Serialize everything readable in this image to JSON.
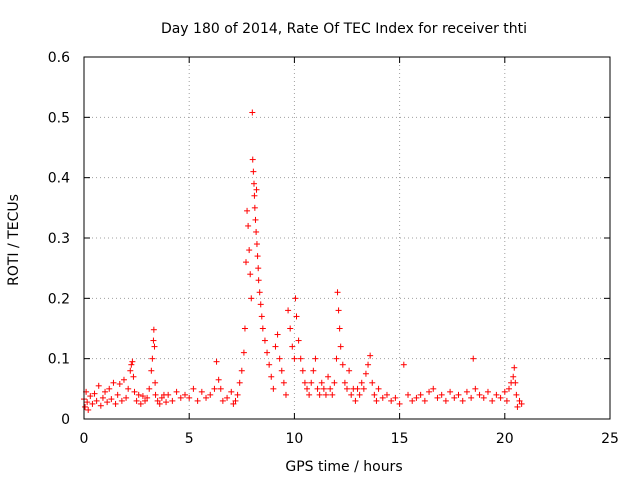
{
  "chart_data": {
    "type": "scatter",
    "title": "Day 180 of 2014, Rate Of TEC Index for receiver thti",
    "xlabel": "GPS time / hours",
    "ylabel": "ROTI / TECUs",
    "xlim": [
      0,
      25
    ],
    "ylim": [
      0,
      0.6
    ],
    "xticks": [
      0,
      5,
      10,
      15,
      20,
      25
    ],
    "xtick_labels": [
      "0",
      "5",
      "10",
      "15",
      "20",
      "25"
    ],
    "yticks": [
      0,
      0.1,
      0.2,
      0.3,
      0.4,
      0.5,
      0.6
    ],
    "ytick_labels": [
      "0",
      "0.1",
      "0.2",
      "0.3",
      "0.4",
      "0.5",
      "0.6"
    ],
    "grid": true,
    "marker": "+",
    "color": "#ff0000",
    "series": [
      {
        "name": "ROTI",
        "points": [
          [
            0.0,
            0.033
          ],
          [
            0.05,
            0.02
          ],
          [
            0.1,
            0.045
          ],
          [
            0.15,
            0.028
          ],
          [
            0.2,
            0.015
          ],
          [
            0.3,
            0.038
          ],
          [
            0.4,
            0.025
          ],
          [
            0.5,
            0.042
          ],
          [
            0.6,
            0.03
          ],
          [
            0.7,
            0.055
          ],
          [
            0.8,
            0.022
          ],
          [
            0.9,
            0.035
          ],
          [
            1.0,
            0.045
          ],
          [
            1.1,
            0.028
          ],
          [
            1.2,
            0.05
          ],
          [
            1.3,
            0.033
          ],
          [
            1.4,
            0.06
          ],
          [
            1.5,
            0.025
          ],
          [
            1.6,
            0.04
          ],
          [
            1.7,
            0.058
          ],
          [
            1.8,
            0.03
          ],
          [
            1.9,
            0.065
          ],
          [
            2.0,
            0.035
          ],
          [
            2.1,
            0.05
          ],
          [
            2.2,
            0.08
          ],
          [
            2.25,
            0.09
          ],
          [
            2.3,
            0.095
          ],
          [
            2.35,
            0.07
          ],
          [
            2.4,
            0.045
          ],
          [
            2.5,
            0.03
          ],
          [
            2.6,
            0.04
          ],
          [
            2.7,
            0.025
          ],
          [
            2.8,
            0.038
          ],
          [
            2.9,
            0.03
          ],
          [
            3.0,
            0.035
          ],
          [
            3.1,
            0.05
          ],
          [
            3.2,
            0.08
          ],
          [
            3.25,
            0.1
          ],
          [
            3.3,
            0.13
          ],
          [
            3.32,
            0.148
          ],
          [
            3.35,
            0.12
          ],
          [
            3.38,
            0.06
          ],
          [
            3.4,
            0.04
          ],
          [
            3.5,
            0.03
          ],
          [
            3.6,
            0.025
          ],
          [
            3.7,
            0.035
          ],
          [
            3.8,
            0.04
          ],
          [
            3.9,
            0.028
          ],
          [
            4.0,
            0.04
          ],
          [
            4.2,
            0.03
          ],
          [
            4.4,
            0.045
          ],
          [
            4.6,
            0.035
          ],
          [
            4.8,
            0.04
          ],
          [
            5.0,
            0.035
          ],
          [
            5.2,
            0.05
          ],
          [
            5.4,
            0.03
          ],
          [
            5.6,
            0.045
          ],
          [
            5.8,
            0.035
          ],
          [
            6.0,
            0.04
          ],
          [
            6.2,
            0.05
          ],
          [
            6.3,
            0.095
          ],
          [
            6.4,
            0.065
          ],
          [
            6.5,
            0.05
          ],
          [
            6.6,
            0.03
          ],
          [
            6.8,
            0.035
          ],
          [
            7.0,
            0.045
          ],
          [
            7.1,
            0.025
          ],
          [
            7.2,
            0.03
          ],
          [
            7.3,
            0.04
          ],
          [
            7.4,
            0.06
          ],
          [
            7.5,
            0.08
          ],
          [
            7.6,
            0.11
          ],
          [
            7.65,
            0.15
          ],
          [
            7.7,
            0.26
          ],
          [
            7.75,
            0.345
          ],
          [
            7.8,
            0.32
          ],
          [
            7.85,
            0.28
          ],
          [
            7.9,
            0.24
          ],
          [
            7.95,
            0.2
          ],
          [
            8.0,
            0.508
          ],
          [
            8.02,
            0.43
          ],
          [
            8.05,
            0.41
          ],
          [
            8.08,
            0.39
          ],
          [
            8.1,
            0.37
          ],
          [
            8.12,
            0.35
          ],
          [
            8.15,
            0.33
          ],
          [
            8.18,
            0.31
          ],
          [
            8.2,
            0.38
          ],
          [
            8.22,
            0.29
          ],
          [
            8.25,
            0.27
          ],
          [
            8.28,
            0.25
          ],
          [
            8.3,
            0.23
          ],
          [
            8.35,
            0.21
          ],
          [
            8.4,
            0.19
          ],
          [
            8.45,
            0.17
          ],
          [
            8.5,
            0.15
          ],
          [
            8.6,
            0.13
          ],
          [
            8.7,
            0.11
          ],
          [
            8.8,
            0.09
          ],
          [
            8.9,
            0.07
          ],
          [
            9.0,
            0.05
          ],
          [
            9.1,
            0.12
          ],
          [
            9.2,
            0.14
          ],
          [
            9.3,
            0.1
          ],
          [
            9.4,
            0.08
          ],
          [
            9.5,
            0.06
          ],
          [
            9.6,
            0.04
          ],
          [
            9.7,
            0.18
          ],
          [
            9.8,
            0.15
          ],
          [
            9.9,
            0.12
          ],
          [
            10.0,
            0.1
          ],
          [
            10.05,
            0.2
          ],
          [
            10.1,
            0.17
          ],
          [
            10.2,
            0.13
          ],
          [
            10.3,
            0.1
          ],
          [
            10.4,
            0.08
          ],
          [
            10.5,
            0.06
          ],
          [
            10.6,
            0.05
          ],
          [
            10.7,
            0.04
          ],
          [
            10.8,
            0.06
          ],
          [
            10.9,
            0.08
          ],
          [
            11.0,
            0.1
          ],
          [
            11.1,
            0.05
          ],
          [
            11.2,
            0.04
          ],
          [
            11.3,
            0.06
          ],
          [
            11.4,
            0.05
          ],
          [
            11.5,
            0.04
          ],
          [
            11.6,
            0.07
          ],
          [
            11.7,
            0.05
          ],
          [
            11.8,
            0.04
          ],
          [
            11.9,
            0.06
          ],
          [
            12.0,
            0.1
          ],
          [
            12.05,
            0.21
          ],
          [
            12.1,
            0.18
          ],
          [
            12.15,
            0.15
          ],
          [
            12.2,
            0.12
          ],
          [
            12.3,
            0.09
          ],
          [
            12.4,
            0.06
          ],
          [
            12.5,
            0.05
          ],
          [
            12.6,
            0.08
          ],
          [
            12.7,
            0.04
          ],
          [
            12.8,
            0.05
          ],
          [
            12.9,
            0.03
          ],
          [
            13.0,
            0.05
          ],
          [
            13.1,
            0.04
          ],
          [
            13.2,
            0.06
          ],
          [
            13.3,
            0.05
          ],
          [
            13.4,
            0.075
          ],
          [
            13.5,
            0.09
          ],
          [
            13.6,
            0.105
          ],
          [
            13.7,
            0.06
          ],
          [
            13.8,
            0.04
          ],
          [
            13.9,
            0.03
          ],
          [
            14.0,
            0.05
          ],
          [
            14.2,
            0.035
          ],
          [
            14.4,
            0.04
          ],
          [
            14.6,
            0.03
          ],
          [
            14.8,
            0.035
          ],
          [
            15.0,
            0.025
          ],
          [
            15.2,
            0.09
          ],
          [
            15.4,
            0.04
          ],
          [
            15.6,
            0.03
          ],
          [
            15.8,
            0.035
          ],
          [
            16.0,
            0.04
          ],
          [
            16.2,
            0.03
          ],
          [
            16.4,
            0.045
          ],
          [
            16.6,
            0.05
          ],
          [
            16.8,
            0.035
          ],
          [
            17.0,
            0.04
          ],
          [
            17.2,
            0.03
          ],
          [
            17.4,
            0.045
          ],
          [
            17.6,
            0.035
          ],
          [
            17.8,
            0.04
          ],
          [
            18.0,
            0.03
          ],
          [
            18.2,
            0.045
          ],
          [
            18.4,
            0.035
          ],
          [
            18.5,
            0.1
          ],
          [
            18.6,
            0.05
          ],
          [
            18.8,
            0.04
          ],
          [
            19.0,
            0.035
          ],
          [
            19.2,
            0.045
          ],
          [
            19.4,
            0.03
          ],
          [
            19.6,
            0.04
          ],
          [
            19.8,
            0.035
          ],
          [
            20.0,
            0.045
          ],
          [
            20.1,
            0.03
          ],
          [
            20.2,
            0.05
          ],
          [
            20.3,
            0.06
          ],
          [
            20.4,
            0.07
          ],
          [
            20.45,
            0.085
          ],
          [
            20.5,
            0.06
          ],
          [
            20.55,
            0.04
          ],
          [
            20.6,
            0.02
          ],
          [
            20.7,
            0.03
          ],
          [
            20.8,
            0.025
          ]
        ]
      }
    ]
  }
}
